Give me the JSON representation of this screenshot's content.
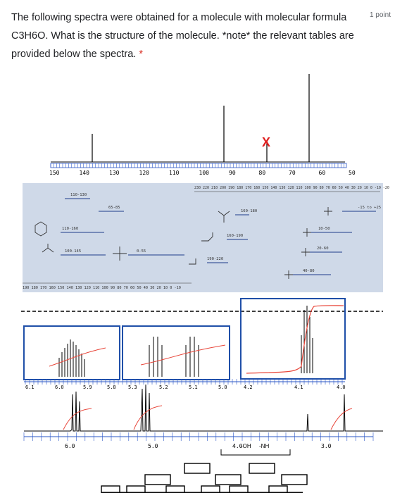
{
  "question": {
    "text": "The following spectra were obtained for a molecule with molecular formula C3H6O. What is the structure of the molecule. *note* the relevant tables are provided below the spectra.",
    "required_marker": "*",
    "points": "1 point"
  },
  "cnmr": {
    "ticks": [
      "150",
      "140",
      "130",
      "120",
      "110",
      "100",
      "90",
      "80",
      "70",
      "60",
      "50"
    ],
    "x_marker": "X"
  },
  "c_table": {
    "labels": [
      "110-130",
      "65-85",
      "110-160",
      "100-145",
      "0-55",
      "160-180",
      "160-190",
      "190-220",
      "-15 to +25",
      "10-50",
      "20-60",
      "40-80"
    ],
    "tick_row": "190 180 170 160 150 140 130 120 110 100 90 80 70 60 50 40 30 20 10 0 -10",
    "top_tick_row": "230 220 210 200 190 180 170 160 150 140 130 120 110 100 90 80 70 60 50 40 30 20 10 0 -10 -20",
    "groups": [
      "-C≡N",
      "-C≡C-",
      "Br",
      "Cl",
      "O"
    ]
  },
  "hnmr": {
    "inset1_ticks": [
      "6.1",
      "6.0",
      "5.9",
      "5.8"
    ],
    "inset2_ticks": [
      "5.3",
      "5.2",
      "5.1",
      "5.0"
    ],
    "inset3_ticks": [
      "4.2",
      "4.1",
      "4.0"
    ],
    "main_ticks": [
      "6.0",
      "5.0",
      "4.0",
      "3.0"
    ],
    "range_labels": [
      "-OH",
      "-NH"
    ]
  }
}
